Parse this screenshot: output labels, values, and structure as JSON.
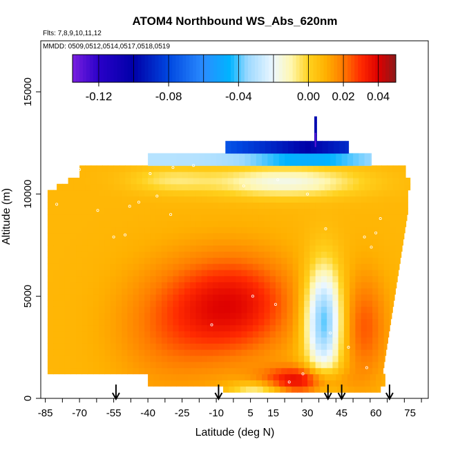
{
  "chart_data": {
    "type": "heatmap",
    "title": "ATOM4 Northbound WS_Abs_620nm",
    "subtitle_flights": "Flts: 7,8,9,10,11,12",
    "subtitle_dates": "MMDD: 0509,0512,0514,0517,0518,0519",
    "xlabel": "Latitude (deg N)",
    "ylabel": "Altitude (m)",
    "xlim": [
      -87,
      83
    ],
    "ylim": [
      0,
      17500
    ],
    "x_ticks": [
      -85,
      -70,
      -55,
      -40,
      -25,
      -10,
      5,
      15,
      30,
      45,
      60,
      75
    ],
    "x_tick_labels": [
      "-85",
      "-70",
      "-55",
      "-40",
      "-25",
      "-10",
      "5",
      "15",
      "30",
      "45",
      "60",
      "75"
    ],
    "y_ticks": [
      0,
      5000,
      10000,
      15000
    ],
    "y_tick_labels": [
      "0",
      "5000",
      "10000",
      "15000"
    ],
    "colorbar": {
      "min": -0.135,
      "max": 0.05,
      "ticks": [
        -0.12,
        -0.08,
        -0.04,
        0.0,
        0.02,
        0.04
      ],
      "tick_labels": [
        "-0.12",
        "-0.08",
        "-0.04",
        "0.00",
        "0.02",
        "0.04"
      ],
      "stops": [
        [
          -0.135,
          "#7a1fe0"
        ],
        [
          -0.12,
          "#2a00c8"
        ],
        [
          -0.1,
          "#0000a8"
        ],
        [
          -0.08,
          "#0047e0"
        ],
        [
          -0.06,
          "#2a8cff"
        ],
        [
          -0.045,
          "#00b4ff"
        ],
        [
          -0.035,
          "#9ad8ff"
        ],
        [
          -0.02,
          "#eef8ff"
        ],
        [
          -0.01,
          "#fff7b0"
        ],
        [
          0.0,
          "#ffd21e"
        ],
        [
          0.01,
          "#ffb000"
        ],
        [
          0.02,
          "#ff7a00"
        ],
        [
          0.03,
          "#ff2a00"
        ],
        [
          0.04,
          "#dd0000"
        ],
        [
          0.05,
          "#8c1a1a"
        ]
      ]
    },
    "flight_markers_lat": [
      -54,
      -9,
      39,
      45,
      66
    ],
    "sample_points": [
      [
        -80,
        9500
      ],
      [
        -70,
        11200
      ],
      [
        -62,
        9200
      ],
      [
        -55,
        7900
      ],
      [
        -48,
        9400
      ],
      [
        -44,
        9600
      ],
      [
        -39,
        11000
      ],
      [
        -36,
        9900
      ],
      [
        -29,
        11300
      ],
      [
        -20,
        11400
      ],
      [
        2,
        10400
      ],
      [
        17,
        10700
      ],
      [
        30,
        10000
      ],
      [
        38,
        8300
      ],
      [
        55,
        7900
      ],
      [
        60,
        8100
      ],
      [
        62,
        8800
      ],
      [
        58,
        7400
      ],
      [
        16,
        4600
      ],
      [
        22,
        800
      ],
      [
        28,
        1200
      ],
      [
        40,
        3200
      ],
      [
        48,
        2500
      ],
      [
        56,
        1500
      ],
      [
        -30,
        9000
      ],
      [
        -50,
        8000
      ],
      [
        -12,
        3600
      ],
      [
        6,
        5000
      ]
    ],
    "field_regions": [
      {
        "lat": [
          -85,
          -60
        ],
        "alt": [
          0,
          10500
        ],
        "value": 0.008
      },
      {
        "lat": [
          -60,
          -30
        ],
        "alt": [
          1000,
          9500
        ],
        "value": 0.013
      },
      {
        "lat": [
          -30,
          -5
        ],
        "alt": [
          500,
          9000
        ],
        "value": 0.018
      },
      {
        "lat": [
          -10,
          18
        ],
        "alt": [
          3000,
          6500
        ],
        "value": 0.033
      },
      {
        "lat": [
          5,
          20
        ],
        "alt": [
          5000,
          6000
        ],
        "value": 0.038
      },
      {
        "lat": [
          22,
          30
        ],
        "alt": [
          4000,
          7000
        ],
        "value": -0.01
      },
      {
        "lat": [
          30,
          48
        ],
        "alt": [
          2000,
          6000
        ],
        "value": -0.035
      },
      {
        "lat": [
          15,
          35
        ],
        "alt": [
          300,
          1500
        ],
        "value": 0.04
      },
      {
        "lat": [
          -40,
          70
        ],
        "alt": [
          10500,
          11500
        ],
        "value": -0.03
      },
      {
        "lat": [
          -35,
          55
        ],
        "alt": [
          11500,
          12000
        ],
        "value": -0.05
      },
      {
        "lat": [
          -10,
          45
        ],
        "alt": [
          12000,
          12500
        ],
        "value": -0.1
      }
    ]
  }
}
